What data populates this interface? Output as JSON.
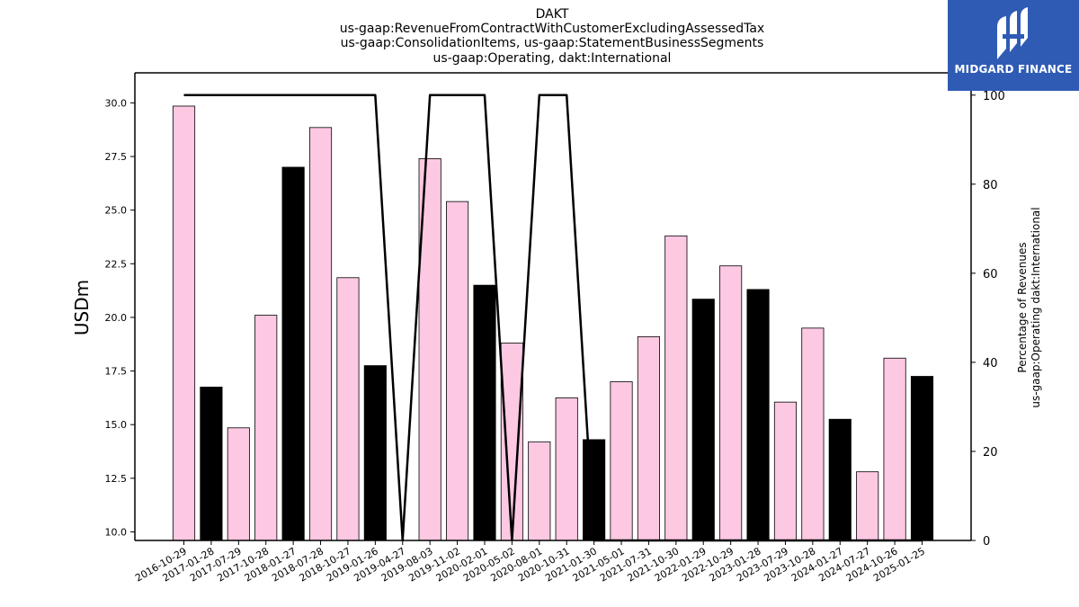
{
  "chart_data": {
    "type": "bar",
    "title_lines": [
      "DAKT",
      "us-gaap:RevenueFromContractWithCustomerExcludingAssessedTax",
      "us-gaap:ConsolidationItems, us-gaap:StatementBusinessSegments",
      "us-gaap:Operating, dakt:International"
    ],
    "ylabel": "USDm",
    "y2label_lines": [
      "Percentage of Revenues",
      "us-gaap:Operating dakt:International"
    ],
    "ylim": [
      9.6,
      31.4
    ],
    "y2lim": [
      0,
      105
    ],
    "yticks": [
      "10.0",
      "12.5",
      "15.0",
      "17.5",
      "20.0",
      "22.5",
      "25.0",
      "27.5",
      "30.0"
    ],
    "y2ticks": [
      "0",
      "20",
      "40",
      "60",
      "80",
      "100"
    ],
    "categories": [
      "2016-10-29",
      "2017-01-28",
      "2017-07-29",
      "2017-10-28",
      "2018-01-27",
      "2018-07-28",
      "2018-10-27",
      "2019-01-26",
      "2019-04-27",
      "2019-08-03",
      "2019-11-02",
      "2020-02-01",
      "2020-05-02",
      "2020-08-01",
      "2020-10-31",
      "2021-01-30",
      "2021-05-01",
      "2021-07-31",
      "2021-10-30",
      "2022-01-29",
      "2022-10-29",
      "2023-01-28",
      "2023-07-29",
      "2023-10-28",
      "2024-01-27",
      "2024-07-27",
      "2024-10-26",
      "2025-01-25"
    ],
    "series": [
      {
        "values": [
          29.85,
          16.75,
          14.85,
          20.1,
          27.0,
          28.85,
          21.85,
          17.75,
          0,
          27.4,
          25.4,
          21.5,
          18.8,
          14.2,
          16.25,
          14.3,
          17.0,
          19.1,
          23.8,
          20.85,
          22.4,
          21.3,
          16.05,
          19.5,
          15.25,
          12.8,
          18.1,
          17.25
        ],
        "bar_colors": [
          "#fcc8e2",
          "#000000",
          "#fcc8e2",
          "#fcc8e2",
          "#000000",
          "#fcc8e2",
          "#fcc8e2",
          "#000000",
          "#fcc8e2",
          "#fcc8e2",
          "#fcc8e2",
          "#000000",
          "#fcc8e2",
          "#fcc8e2",
          "#fcc8e2",
          "#000000",
          "#fcc8e2",
          "#fcc8e2",
          "#fcc8e2",
          "#000000",
          "#fcc8e2",
          "#000000",
          "#fcc8e2",
          "#fcc8e2",
          "#000000",
          "#fcc8e2",
          "#fcc8e2",
          "#000000"
        ]
      },
      {
        "type": "line",
        "axis": "right",
        "values": [
          100,
          100,
          100,
          100,
          100,
          100,
          100,
          100,
          0,
          100,
          100,
          100,
          0,
          100,
          100,
          0,
          0,
          0,
          0,
          0,
          0,
          0,
          0,
          0,
          0,
          0,
          0,
          0
        ],
        "color": "#000000"
      }
    ],
    "colors": {
      "pink": "#fcc8e2",
      "black": "#000000"
    }
  },
  "logo": {
    "text": "MIDGARD FINANCE",
    "background": "#2f5bb5",
    "icon": "midgard-logo-icon"
  }
}
